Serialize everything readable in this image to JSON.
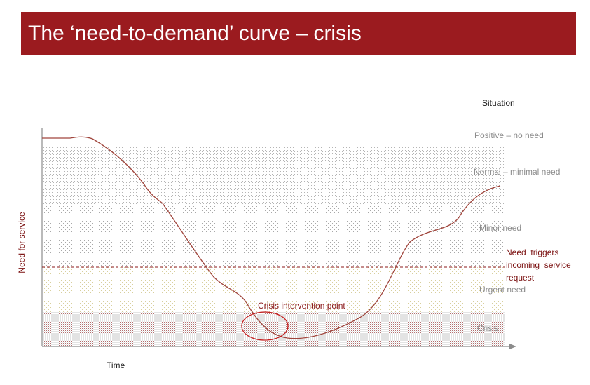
{
  "title": "The ‘need-to-demand’ curve – crisis",
  "axes": {
    "y_label": "Need for service",
    "x_label": "Time"
  },
  "situation_header": "Situation",
  "situations": {
    "positive": "Positive – no need",
    "normal": "Normal – minimal need",
    "minor": "Minor need",
    "urgent": "Urgent need",
    "crisis": "Crisis"
  },
  "threshold": {
    "line1": "Need  triggers",
    "line2": "incoming  service",
    "line3": "request"
  },
  "annotation": "Crisis intervention point",
  "colors": {
    "brand": "#9b1b1f",
    "curve": "#a0453c",
    "threshold_line": "#8b1a1a",
    "threshold_text": "#7a0f0f",
    "annotation": "#8b1a1a",
    "zone_label": "#8c8c8c",
    "axis": "#8c8c8c"
  }
}
